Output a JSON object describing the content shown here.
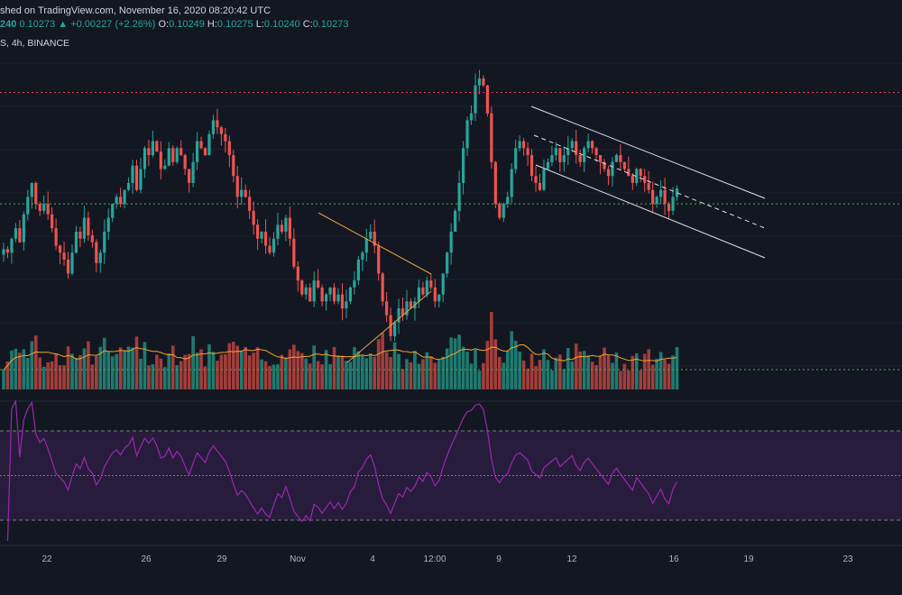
{
  "header": {
    "published": "shed on TradingView.com, November 16, 2020 08:20:42 UTC",
    "price_last": "240",
    "price_value": "0.10273",
    "change_arrow": "▲",
    "change": "+0.00227 (+2.26%)",
    "ohlc": {
      "o_label": "O:",
      "o": "0.10249",
      "h_label": "H:",
      "h": "0.10275",
      "l_label": "L:",
      "l": "0.10240",
      "c_label": "C:",
      "c": "0.10273"
    },
    "symbol_info": "S, 4h, BINANCE"
  },
  "colors": {
    "background": "#131722",
    "bull": "#26a69a",
    "bear": "#ef5350",
    "volume_bull": "#1f7a6f",
    "volume_bear": "#a33d3a",
    "volume_ma": "#f7a52a",
    "rsi": "#9c27b0",
    "rsi_band": "#2a1d3f",
    "resistance": "#f23645",
    "support": "#4caf50",
    "triangle": "#e8a33a",
    "channel": "#e0e3eb"
  },
  "chart_data": {
    "type": "candlestick",
    "timeframe": "4h",
    "x_ticks": [
      "22",
      "26",
      "29",
      "Nov",
      "4",
      "12:00",
      "9",
      "12",
      "16",
      "19",
      "23"
    ],
    "candles_close": [
      0.094,
      0.0935,
      0.0955,
      0.097,
      0.095,
      0.099,
      0.1015,
      0.1035,
      0.1005,
      0.0995,
      0.1005,
      0.099,
      0.097,
      0.0945,
      0.0935,
      0.0925,
      0.0905,
      0.0935,
      0.0965,
      0.0955,
      0.0985,
      0.096,
      0.095,
      0.092,
      0.0935,
      0.0965,
      0.0985,
      0.1005,
      0.1015,
      0.1005,
      0.1025,
      0.1035,
      0.106,
      0.1025,
      0.1055,
      0.1085,
      0.1075,
      0.1095,
      0.108,
      0.1055,
      0.106,
      0.1085,
      0.1065,
      0.1085,
      0.1075,
      0.1055,
      0.1035,
      0.1065,
      0.1095,
      0.1085,
      0.1075,
      0.1105,
      0.1125,
      0.1115,
      0.1105,
      0.1095,
      0.1075,
      0.1045,
      0.1015,
      0.1025,
      0.1015,
      0.0995,
      0.0975,
      0.0955,
      0.0965,
      0.0945,
      0.0935,
      0.0955,
      0.0975,
      0.0965,
      0.0985,
      0.0955,
      0.0915,
      0.0895,
      0.0875,
      0.0885,
      0.0865,
      0.0895,
      0.0885,
      0.0865,
      0.0875,
      0.0885,
      0.0865,
      0.0875,
      0.0855,
      0.0865,
      0.0885,
      0.0895,
      0.0925,
      0.0935,
      0.0955,
      0.0965,
      0.0945,
      0.0905,
      0.0865,
      0.0845,
      0.0815,
      0.0835,
      0.0855,
      0.0845,
      0.0865,
      0.0855,
      0.0865,
      0.0885,
      0.0875,
      0.0895,
      0.0885,
      0.0865,
      0.0875,
      0.0905,
      0.0935,
      0.0965,
      0.0995,
      0.1035,
      0.1085,
      0.1125,
      0.1135,
      0.1175,
      0.1185,
      0.1175,
      0.1135,
      0.1065,
      0.1005,
      0.0985,
      0.1005,
      0.1015,
      0.1055,
      0.1085,
      0.1095,
      0.1085,
      0.1075,
      0.1045,
      0.1035,
      0.1025,
      0.1055,
      0.1065,
      0.1075,
      0.1085,
      0.1065,
      0.1075,
      0.1085,
      0.1095,
      0.1075,
      0.1065,
      0.1085,
      0.1095,
      0.1085,
      0.1075,
      0.1065,
      0.1055,
      0.1045,
      0.1065,
      0.1075,
      0.1065,
      0.1055,
      0.1045,
      0.1035,
      0.1055,
      0.1045,
      0.1035,
      0.1025,
      0.1005,
      0.1015,
      0.1025,
      0.1005,
      0.0995,
      0.1015,
      0.1027
    ],
    "levels": {
      "resistance": 0.1165,
      "support": 0.1005
    },
    "rsi_levels": [
      70,
      50,
      30
    ]
  }
}
